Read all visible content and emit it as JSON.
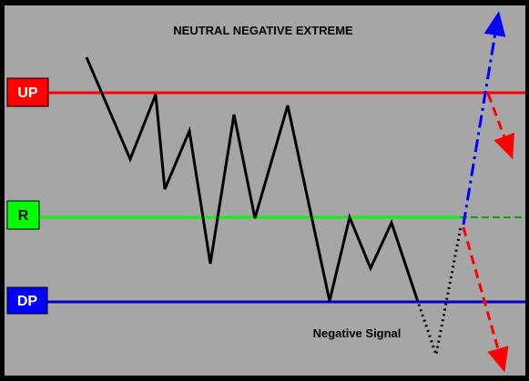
{
  "title": "NEUTRAL NEGATIVE EXTREME",
  "signal_label": "Negative Signal",
  "levels": [
    {
      "label": "UP",
      "line_color": "#ff0000",
      "box_fill": "#ff0000",
      "text_color": "#ffffff"
    },
    {
      "label": "R",
      "line_color": "#00ff00",
      "box_fill": "#00ff00",
      "text_color": "#000000"
    },
    {
      "label": "DP",
      "line_color": "#0000cc",
      "box_fill": "#0000ff",
      "text_color": "#ffffff"
    }
  ],
  "colors": {
    "background": "#a6a6a6",
    "frame": "#000000",
    "price_line": "#000000",
    "breakout_arrow": "#0000ff",
    "reversal_arrows": "#ff0000"
  },
  "icons": [
    "up-arrow-icon",
    "down-arrow-icon"
  ]
}
